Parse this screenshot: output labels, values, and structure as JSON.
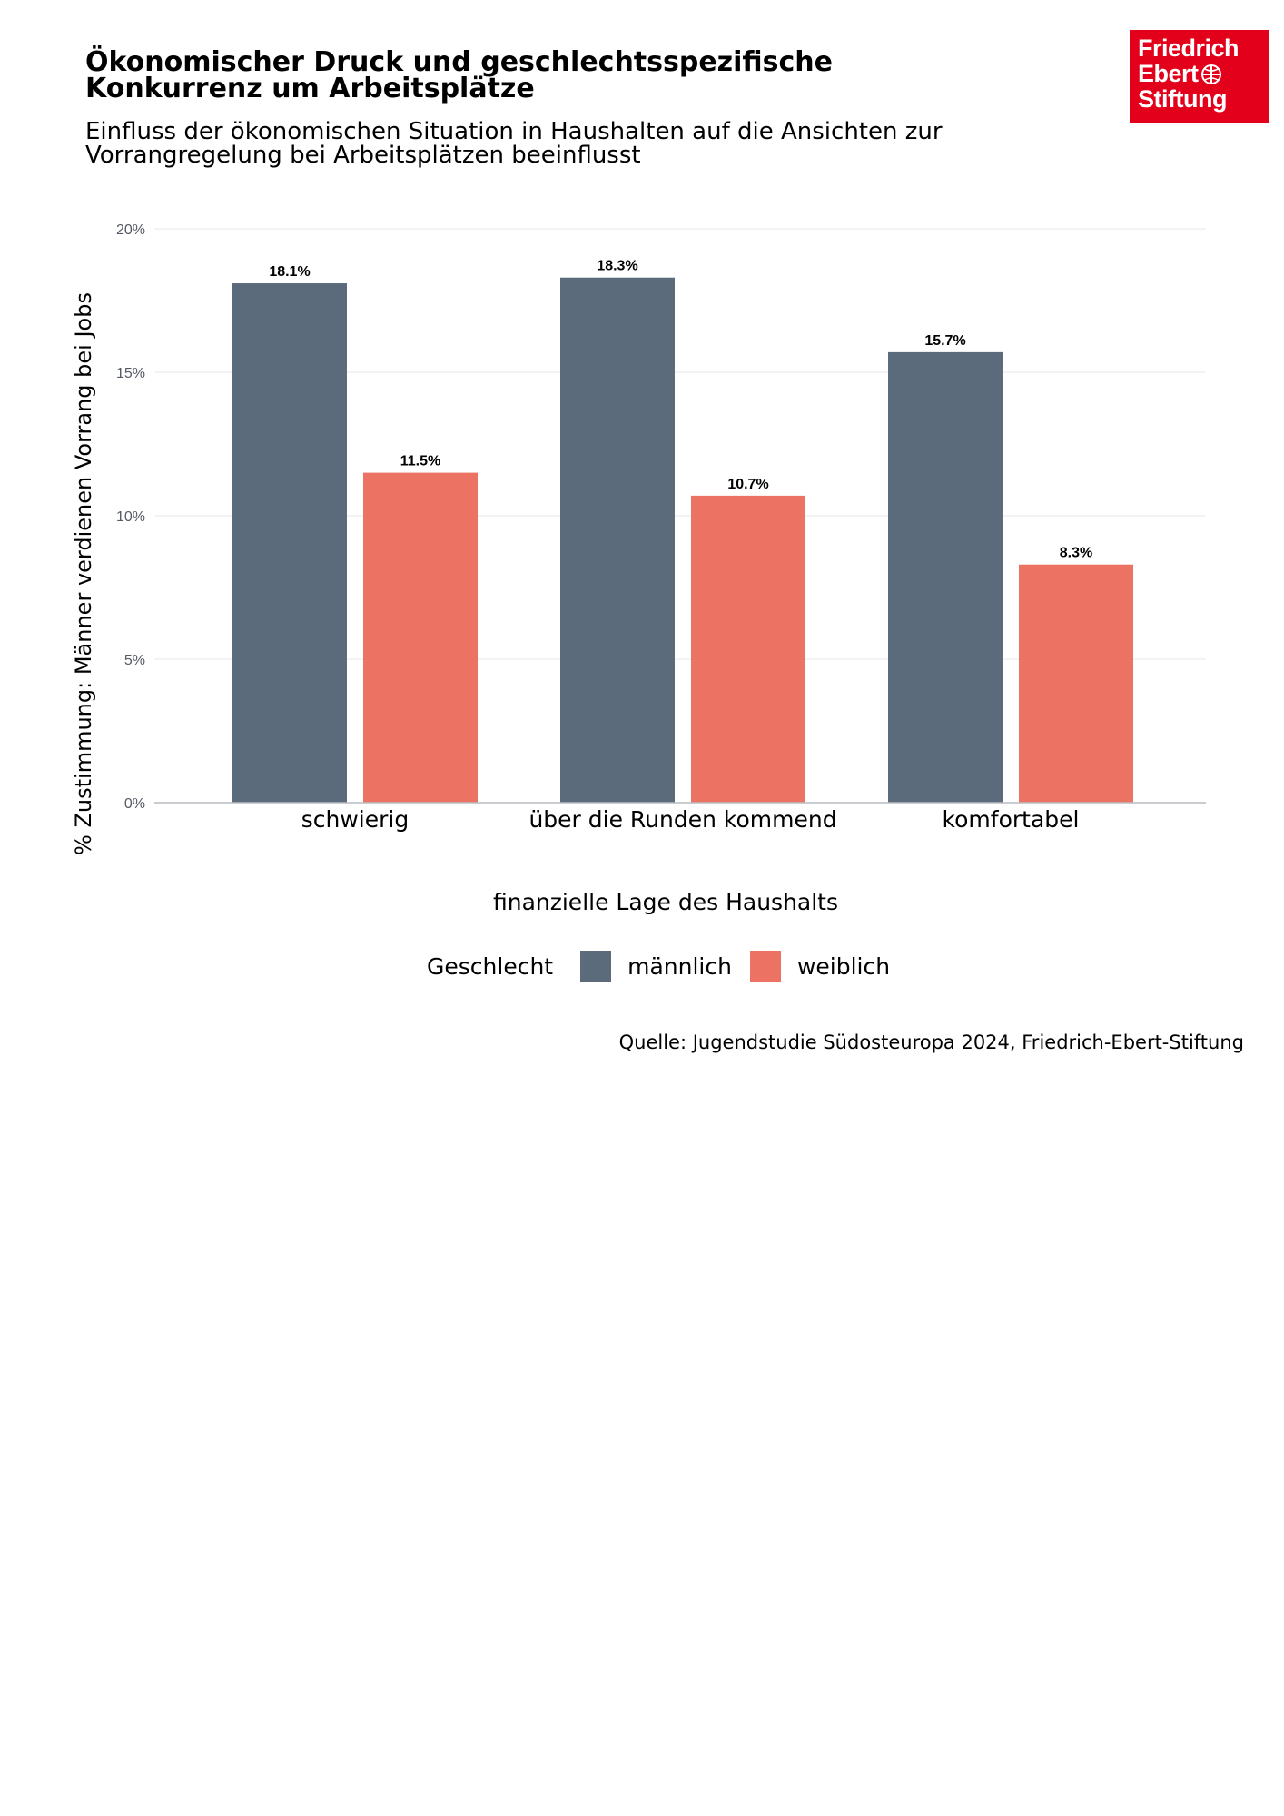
{
  "header": {
    "title": "Ökonomischer Druck und geschlechtsspezifische Konkurrenz um Arbeitsplätze",
    "subtitle": "Einfluss der ökonomischen Situation in Haushalten auf die Ansichten zur Vorrangregelung bei Arbeitsplätzen beeinflusst"
  },
  "logo": {
    "line1": "Friedrich",
    "line2": "Ebert",
    "line3": "Stiftung",
    "color": "#e2001a"
  },
  "chart_data": {
    "type": "bar",
    "title": "Ökonomischer Druck und geschlechtsspezifische Konkurrenz um Arbeitsplätze",
    "categories": [
      "schwierig",
      "über die Runden kommend",
      "komfortabel"
    ],
    "series": [
      {
        "name": "männlich",
        "values": [
          18.1,
          18.3,
          15.7
        ],
        "color": "#5c6b7b"
      },
      {
        "name": "weiblich",
        "values": [
          11.5,
          10.7,
          8.3
        ],
        "color": "#ec7263"
      }
    ],
    "data_labels": [
      [
        "18.1%",
        "18.3%",
        "15.7%"
      ],
      [
        "11.5%",
        "10.7%",
        "8.3%"
      ]
    ],
    "xlabel": "finanzielle Lage des Haushalts",
    "ylabel": "% Zustimmung: Männer verdienen Vorrang bei Jobs",
    "ylim": [
      0,
      20
    ],
    "yticks": [
      0,
      5,
      10,
      15,
      20
    ],
    "ytick_labels": [
      "0%",
      "5%",
      "10%",
      "15%",
      "20%"
    ],
    "grid": true,
    "legend_position": "bottom"
  },
  "legend": {
    "title": "Geschlecht",
    "items": [
      "männlich",
      "weiblich"
    ]
  },
  "source": "Quelle: Jugendstudie Südosteuropa 2024, Friedrich-Ebert-Stiftung"
}
